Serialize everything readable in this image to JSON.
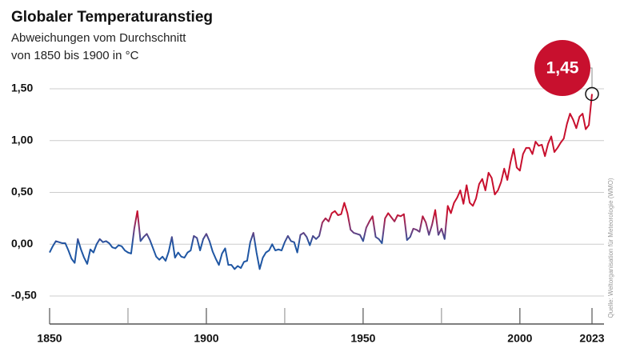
{
  "chart_data": {
    "type": "line",
    "title": "Globaler Temperaturanstieg",
    "subtitle": [
      "Abweichungen vom Durchschnitt",
      "von 1850 bis 1900 in °C"
    ],
    "source": "Quelle: Weltorganisation für Meteorologie (WMO)",
    "x": [
      1850,
      1851,
      1852,
      1853,
      1854,
      1855,
      1856,
      1857,
      1858,
      1859,
      1860,
      1861,
      1862,
      1863,
      1864,
      1865,
      1866,
      1867,
      1868,
      1869,
      1870,
      1871,
      1872,
      1873,
      1874,
      1875,
      1876,
      1877,
      1878,
      1879,
      1880,
      1881,
      1882,
      1883,
      1884,
      1885,
      1886,
      1887,
      1888,
      1889,
      1890,
      1891,
      1892,
      1893,
      1894,
      1895,
      1896,
      1897,
      1898,
      1899,
      1900,
      1901,
      1902,
      1903,
      1904,
      1905,
      1906,
      1907,
      1908,
      1909,
      1910,
      1911,
      1912,
      1913,
      1914,
      1915,
      1916,
      1917,
      1918,
      1919,
      1920,
      1921,
      1922,
      1923,
      1924,
      1925,
      1926,
      1927,
      1928,
      1929,
      1930,
      1931,
      1932,
      1933,
      1934,
      1935,
      1936,
      1937,
      1938,
      1939,
      1940,
      1941,
      1942,
      1943,
      1944,
      1945,
      1946,
      1947,
      1948,
      1949,
      1950,
      1951,
      1952,
      1953,
      1954,
      1955,
      1956,
      1957,
      1958,
      1959,
      1960,
      1961,
      1962,
      1963,
      1964,
      1965,
      1966,
      1967,
      1968,
      1969,
      1970,
      1971,
      1972,
      1973,
      1974,
      1975,
      1976,
      1977,
      1978,
      1979,
      1980,
      1981,
      1982,
      1983,
      1984,
      1985,
      1986,
      1987,
      1988,
      1989,
      1990,
      1991,
      1992,
      1993,
      1994,
      1995,
      1996,
      1997,
      1998,
      1999,
      2000,
      2001,
      2002,
      2003,
      2004,
      2005,
      2006,
      2007,
      2008,
      2009,
      2010,
      2011,
      2012,
      2013,
      2014,
      2015,
      2016,
      2017,
      2018,
      2019,
      2020,
      2021,
      2022,
      2023
    ],
    "values": [
      -0.08,
      -0.02,
      0.03,
      0.02,
      0.01,
      0.01,
      -0.06,
      -0.14,
      -0.18,
      0.05,
      -0.05,
      -0.13,
      -0.19,
      -0.05,
      -0.08,
      0.0,
      0.05,
      0.02,
      0.03,
      0.01,
      -0.03,
      -0.04,
      -0.01,
      -0.02,
      -0.06,
      -0.08,
      -0.09,
      0.15,
      0.32,
      0.03,
      0.07,
      0.1,
      0.04,
      -0.04,
      -0.12,
      -0.15,
      -0.12,
      -0.16,
      -0.07,
      0.07,
      -0.13,
      -0.08,
      -0.12,
      -0.13,
      -0.08,
      -0.06,
      0.08,
      0.06,
      -0.06,
      0.05,
      0.1,
      0.03,
      -0.07,
      -0.14,
      -0.2,
      -0.09,
      -0.04,
      -0.2,
      -0.2,
      -0.24,
      -0.21,
      -0.23,
      -0.17,
      -0.16,
      0.02,
      0.11,
      -0.08,
      -0.24,
      -0.13,
      -0.08,
      -0.06,
      0.0,
      -0.06,
      -0.05,
      -0.06,
      0.02,
      0.08,
      0.03,
      0.02,
      -0.08,
      0.09,
      0.11,
      0.07,
      -0.01,
      0.08,
      0.05,
      0.08,
      0.21,
      0.25,
      0.22,
      0.3,
      0.32,
      0.28,
      0.29,
      0.4,
      0.3,
      0.14,
      0.11,
      0.1,
      0.09,
      0.03,
      0.16,
      0.22,
      0.27,
      0.07,
      0.05,
      0.01,
      0.25,
      0.3,
      0.26,
      0.22,
      0.28,
      0.27,
      0.29,
      0.04,
      0.07,
      0.15,
      0.14,
      0.12,
      0.27,
      0.21,
      0.09,
      0.19,
      0.33,
      0.09,
      0.15,
      0.05,
      0.37,
      0.3,
      0.4,
      0.45,
      0.52,
      0.39,
      0.57,
      0.4,
      0.37,
      0.44,
      0.58,
      0.63,
      0.52,
      0.69,
      0.64,
      0.48,
      0.52,
      0.6,
      0.73,
      0.62,
      0.79,
      0.92,
      0.74,
      0.71,
      0.87,
      0.93,
      0.93,
      0.87,
      0.99,
      0.95,
      0.96,
      0.85,
      0.97,
      1.04,
      0.89,
      0.93,
      0.98,
      1.02,
      1.16,
      1.26,
      1.2,
      1.12,
      1.23,
      1.26,
      1.11,
      1.15,
      1.45
    ],
    "colors": {
      "low": "#1f56a3",
      "high": "#c8102e"
    },
    "xlim": [
      1850,
      2023
    ],
    "xticks": [
      1850,
      1900,
      1950,
      2000,
      2023
    ],
    "xminorticks": [
      1875,
      1925,
      1975
    ],
    "ylim": [
      -0.77,
      1.5
    ],
    "yticks": [
      {
        "value": 1.5,
        "label": "1,50"
      },
      {
        "value": 1.0,
        "label": "1,00"
      },
      {
        "value": 0.5,
        "label": "0,50"
      },
      {
        "value": 0.0,
        "label": "0,00"
      },
      {
        "value": -0.5,
        "label": "-0,50"
      }
    ],
    "grid": true,
    "annotations": [
      {
        "x": 2023,
        "y": 1.45,
        "label": "1,45"
      }
    ]
  }
}
